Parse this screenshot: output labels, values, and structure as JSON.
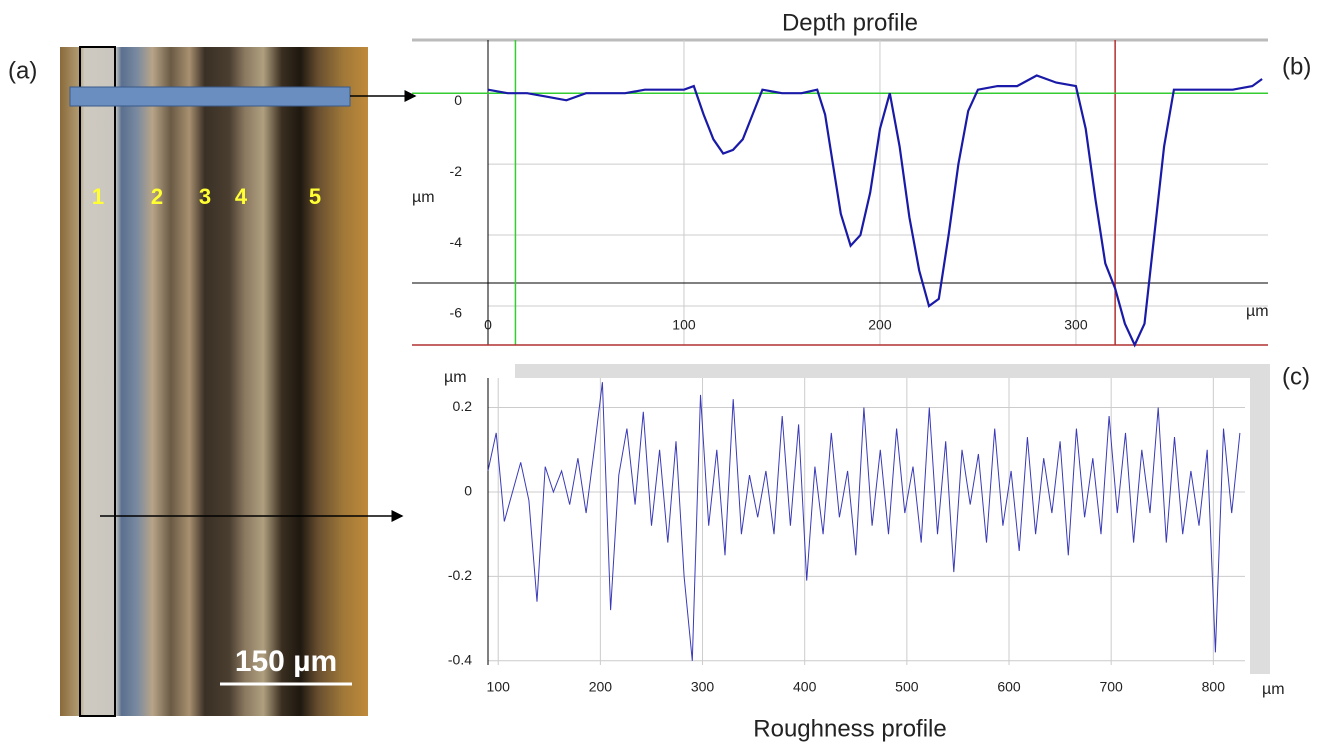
{
  "panels": {
    "a_label": "(a)",
    "b_label": "(b)",
    "c_label": "(c)",
    "tracks": [
      "1",
      "2",
      "3",
      "4",
      "5"
    ],
    "scale_bar": "150 µm"
  },
  "chart_data": [
    {
      "type": "line",
      "title": "Depth profile",
      "ylabel": "µm",
      "xlabel": "µm",
      "x": [
        0,
        10,
        20,
        30,
        40,
        50,
        60,
        70,
        80,
        90,
        100,
        105,
        110,
        115,
        120,
        125,
        130,
        135,
        140,
        150,
        160,
        168,
        172,
        176,
        180,
        185,
        190,
        195,
        200,
        205,
        210,
        215,
        220,
        225,
        230,
        235,
        240,
        245,
        250,
        260,
        270,
        280,
        290,
        300,
        305,
        310,
        315,
        320,
        325,
        330,
        335,
        340,
        345,
        350,
        360,
        370,
        380,
        390,
        395
      ],
      "values": [
        0.1,
        0.0,
        0.0,
        -0.1,
        -0.2,
        0.0,
        0.0,
        0.0,
        0.1,
        0.1,
        0.1,
        0.2,
        -0.6,
        -1.3,
        -1.7,
        -1.6,
        -1.3,
        -0.6,
        0.1,
        0.0,
        0.0,
        0.1,
        -0.6,
        -2.0,
        -3.4,
        -4.3,
        -4.0,
        -2.8,
        -1.0,
        0.0,
        -1.5,
        -3.5,
        -5.0,
        -6.0,
        -5.8,
        -4.0,
        -2.0,
        -0.5,
        0.1,
        0.2,
        0.2,
        0.5,
        0.3,
        0.2,
        -1.0,
        -3.0,
        -4.8,
        -5.5,
        -6.5,
        -7.1,
        -6.5,
        -4.0,
        -1.5,
        0.1,
        0.1,
        0.1,
        0.1,
        0.2,
        0.4
      ],
      "color": "#1a1aa8",
      "xlim": [
        0,
        398
      ],
      "ylim": [
        -7.1,
        1.5
      ],
      "xticks": [
        0,
        100,
        200,
        300
      ],
      "yticks": [
        0,
        -2,
        -4,
        -6
      ],
      "grid": true,
      "cursors": [
        {
          "axis": "x",
          "value": 14,
          "color": "#33cc33"
        },
        {
          "axis": "x",
          "value": 320,
          "color": "#b03030"
        },
        {
          "axis": "y",
          "value": 0,
          "color": "#33cc33"
        },
        {
          "axis": "y",
          "value": -7.1,
          "color": "#b03030"
        }
      ]
    },
    {
      "type": "line",
      "title": "Roughness profile",
      "ylabel": "µm",
      "xlabel": "µm",
      "x": [
        90,
        98,
        106,
        114,
        122,
        130,
        138,
        146,
        154,
        162,
        170,
        178,
        186,
        194,
        202,
        210,
        218,
        226,
        234,
        242,
        250,
        258,
        266,
        274,
        282,
        290,
        298,
        306,
        314,
        322,
        330,
        338,
        346,
        354,
        362,
        370,
        378,
        386,
        394,
        402,
        410,
        418,
        426,
        434,
        442,
        450,
        458,
        466,
        474,
        482,
        490,
        498,
        506,
        514,
        522,
        530,
        538,
        546,
        554,
        562,
        570,
        578,
        586,
        594,
        602,
        610,
        618,
        626,
        634,
        642,
        650,
        658,
        666,
        674,
        682,
        690,
        698,
        706,
        714,
        722,
        730,
        738,
        746,
        754,
        762,
        770,
        778,
        786,
        794,
        802,
        810,
        818,
        826
      ],
      "values": [
        0.05,
        0.14,
        -0.07,
        0.0,
        0.07,
        -0.02,
        -0.26,
        0.06,
        0.0,
        0.05,
        -0.03,
        0.08,
        -0.05,
        0.1,
        0.26,
        -0.28,
        0.04,
        0.15,
        -0.03,
        0.19,
        -0.08,
        0.1,
        -0.12,
        0.12,
        -0.2,
        -0.4,
        0.23,
        -0.08,
        0.1,
        -0.15,
        0.22,
        -0.1,
        0.04,
        -0.06,
        0.05,
        -0.1,
        0.18,
        -0.08,
        0.16,
        -0.21,
        0.06,
        -0.1,
        0.14,
        -0.06,
        0.05,
        -0.15,
        0.2,
        -0.08,
        0.1,
        -0.1,
        0.15,
        -0.05,
        0.06,
        -0.12,
        0.2,
        -0.1,
        0.12,
        -0.19,
        0.1,
        -0.03,
        0.09,
        -0.12,
        0.15,
        -0.08,
        0.05,
        -0.14,
        0.13,
        -0.1,
        0.08,
        -0.05,
        0.12,
        -0.15,
        0.15,
        -0.06,
        0.08,
        -0.1,
        0.18,
        -0.05,
        0.14,
        -0.12,
        0.1,
        -0.05,
        0.2,
        -0.12,
        0.13,
        -0.1,
        0.05,
        -0.08,
        0.1,
        -0.38,
        0.15,
        -0.05,
        0.14
      ],
      "color": "#3a3ab8",
      "xlim": [
        90,
        831
      ],
      "ylim": [
        -0.41,
        0.27
      ],
      "xticks": [
        100,
        200,
        300,
        400,
        500,
        600,
        700,
        800
      ],
      "yticks": [
        0.2,
        0,
        -0.2,
        -0.4
      ],
      "grid": true
    }
  ]
}
